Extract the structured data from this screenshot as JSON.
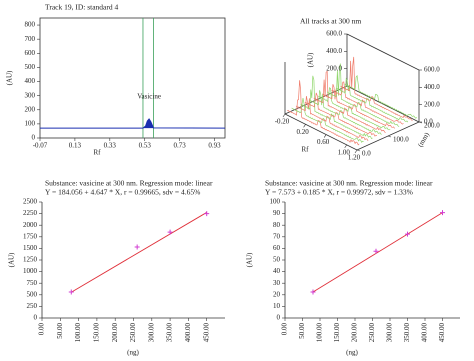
{
  "chart_data": [
    {
      "type": "line",
      "title": "Track 19, ID: standard 4",
      "xlabel": "Rf",
      "ylabel": "(AU)",
      "xlim": [
        -0.07,
        0.99
      ],
      "ylim": [
        0,
        850
      ],
      "xticks": [
        -0.07,
        0.13,
        0.33,
        0.53,
        0.73,
        0.93
      ],
      "yticks": [
        0,
        100,
        200,
        300,
        400,
        500,
        600,
        700,
        800
      ],
      "series": [
        {
          "color": "#1a2fb0",
          "x": [
            -0.07,
            0.52,
            0.535,
            0.545,
            0.555,
            0.565,
            0.58,
            0.99
          ],
          "values": [
            70,
            70,
            85,
            120,
            135,
            115,
            72,
            70
          ]
        }
      ],
      "vlines": [
        0.52,
        0.58
      ],
      "vline_color": "#3aa05a",
      "annotation": "Vasicine"
    },
    {
      "type": "surface3d",
      "title": "All tracks at 300 nm",
      "xlabel": "Rf",
      "ylabel": "(AU)",
      "zlabel": "(mm)",
      "xlim": [
        -0.2,
        1.2
      ],
      "ylim": [
        0,
        600
      ],
      "zlim": [
        0,
        200
      ],
      "xticks": [
        {
          "value": -0.2,
          "label": "-0.20"
        },
        {
          "value": 0.2,
          "label": "0.20"
        },
        {
          "value": 0.6,
          "label": "0.60"
        },
        {
          "value": 1.0,
          "label": "1.00"
        },
        {
          "value": 1.2,
          "label": "1.20"
        }
      ],
      "yticks": [
        {
          "value": 200,
          "label": "200.0"
        },
        {
          "value": 400,
          "label": "400.0"
        },
        {
          "value": 600,
          "label": "600.0"
        }
      ],
      "y2ticks": [
        {
          "value": 0,
          "label": "0.0"
        },
        {
          "value": 200,
          "label": "200.0"
        },
        {
          "value": 400,
          "label": "400.0"
        },
        {
          "value": 600,
          "label": "600.0"
        }
      ],
      "zticks": [
        {
          "value": 0,
          "label": "0.0"
        },
        {
          "value": 100,
          "label": "100.0"
        },
        {
          "value": 200,
          "label": "200.0"
        }
      ]
    },
    {
      "type": "scatter",
      "title": "Substance: vasicine at 300 nm. Regression mode: linear",
      "subtitle": "Y = 184.056 + 4.647 * X, r = 0.99665, sdv = 4.65%",
      "xlabel": "(ng)",
      "ylabel": "(AU)",
      "xlim": [
        0,
        500
      ],
      "ylim": [
        0,
        2500
      ],
      "xticks": [
        {
          "value": 0,
          "label": "0.00"
        },
        {
          "value": 50,
          "label": "50.00"
        },
        {
          "value": 100,
          "label": "100.00"
        },
        {
          "value": 150,
          "label": "150.00"
        },
        {
          "value": 200,
          "label": "200.00"
        },
        {
          "value": 250,
          "label": "250.00"
        },
        {
          "value": 300,
          "label": "300.00"
        },
        {
          "value": 350,
          "label": "350.00"
        },
        {
          "value": 400,
          "label": "400.00"
        },
        {
          "value": 450,
          "label": "450.00"
        }
      ],
      "yticks": [
        0,
        250,
        500,
        750,
        1000,
        1250,
        1500,
        1750,
        2000,
        2250,
        2500
      ],
      "x": [
        80,
        260,
        350,
        450
      ],
      "values": [
        560,
        1530,
        1850,
        2250
      ],
      "color": "#d23cd2",
      "fit_line": {
        "x": [
          80,
          450
        ],
        "values": [
          555.8,
          2275.2
        ],
        "color": "#e0303a"
      }
    },
    {
      "type": "scatter",
      "title": "Substance: vasicine at 300 nm. Regression mode: linear",
      "subtitle": "Y = 7.573 + 0.185 * X, r = 0.99972, sdv = 1.33%",
      "xlabel": "(ng)",
      "ylabel": "(AU)",
      "xlim": [
        0,
        500
      ],
      "ylim": [
        0,
        100
      ],
      "xticks": [
        {
          "value": 0,
          "label": "0.00"
        },
        {
          "value": 50,
          "label": "50.00"
        },
        {
          "value": 100,
          "label": "100.00"
        },
        {
          "value": 150,
          "label": "150.00"
        },
        {
          "value": 200,
          "label": "200.00"
        },
        {
          "value": 250,
          "label": "250.00"
        },
        {
          "value": 300,
          "label": "300.00"
        },
        {
          "value": 350,
          "label": "350.00"
        },
        {
          "value": 400,
          "label": "400.00"
        },
        {
          "value": 450,
          "label": "450.00"
        }
      ],
      "yticks": [
        0,
        10,
        20,
        30,
        40,
        50,
        60,
        70,
        80,
        90,
        100
      ],
      "x": [
        80,
        260,
        350,
        450
      ],
      "values": [
        22.4,
        57.5,
        72.3,
        90.8
      ],
      "color": "#d23cd2",
      "fit_line": {
        "x": [
          80,
          450
        ],
        "values": [
          22.4,
          90.8
        ],
        "color": "#e0303a"
      }
    }
  ]
}
